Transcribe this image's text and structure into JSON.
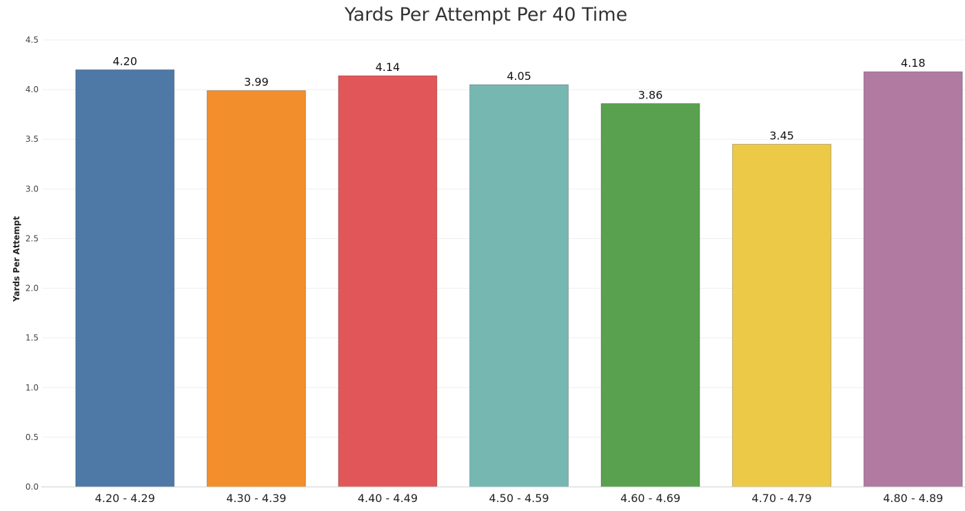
{
  "chart_data": {
    "type": "bar",
    "title": "Yards Per Attempt Per 40 Time",
    "xlabel": "",
    "ylabel": "Yards Per Attempt",
    "categories": [
      "4.20 - 4.29",
      "4.30 - 4.39",
      "4.40 - 4.49",
      "4.50 - 4.59",
      "4.60 - 4.69",
      "4.70 - 4.79",
      "4.80 - 4.89"
    ],
    "values": [
      4.2,
      3.99,
      4.14,
      4.05,
      3.86,
      3.45,
      4.18
    ],
    "value_labels": [
      "4.20",
      "3.99",
      "4.14",
      "4.05",
      "3.86",
      "3.45",
      "4.18"
    ],
    "colors": [
      "#4e79a7",
      "#f28e2b",
      "#e15759",
      "#76b7b2",
      "#59a14f",
      "#edc948",
      "#b07aa1"
    ],
    "ylim": [
      0,
      4.5
    ],
    "yticks": [
      "0.0",
      "0.5",
      "1.0",
      "1.5",
      "2.0",
      "2.5",
      "3.0",
      "3.5",
      "4.0",
      "4.5"
    ],
    "grid": true,
    "legend": "none"
  }
}
